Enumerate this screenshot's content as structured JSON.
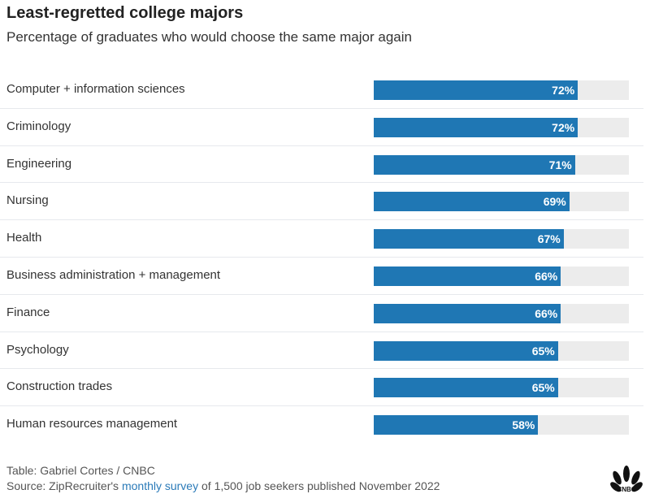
{
  "chart_data": {
    "type": "bar",
    "orientation": "horizontal",
    "title": "Least-regretted college majors",
    "subtitle": "Percentage of graduates who would choose the same major again",
    "categories": [
      "Computer + information sciences",
      "Criminology",
      "Engineering",
      "Nursing",
      "Health",
      "Business administration + management",
      "Finance",
      "Psychology",
      "Construction trades",
      "Human resources management"
    ],
    "values": [
      72,
      72,
      71,
      69,
      67,
      66,
      66,
      65,
      65,
      58
    ],
    "data_labels": [
      "72%",
      "72%",
      "71%",
      "69%",
      "67%",
      "66%",
      "66%",
      "65%",
      "65%",
      "58%"
    ],
    "xlim": [
      0,
      90
    ],
    "grid": false,
    "colors": {
      "bar": "#1f77b4",
      "track": "#ececec"
    }
  },
  "footer": {
    "credit": "Table: Gabriel Cortes / CNBC",
    "source_prefix": "Source: ZipRecruiter's ",
    "source_link": "monthly survey",
    "source_suffix": " of 1,500 job seekers published November 2022",
    "logo_text": "CNBC"
  }
}
